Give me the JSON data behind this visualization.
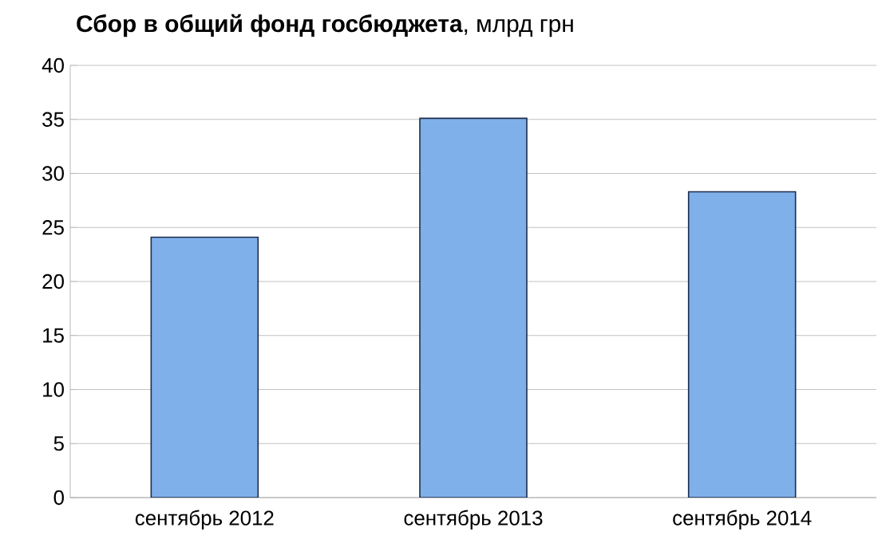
{
  "chart_data": {
    "type": "bar",
    "title": "**Сбор в общий фонд госбюджета**, млрд грн",
    "categories": [
      "сентябрь 2012",
      "сентябрь 2013",
      "сентябрь 2014"
    ],
    "values": [
      24.1,
      35.1,
      28.3
    ],
    "color": "#7fb0ea",
    "ylim": [
      0,
      40
    ],
    "yticks": [
      0,
      5,
      10,
      15,
      20,
      25,
      30,
      35,
      40
    ],
    "grid": "y"
  }
}
